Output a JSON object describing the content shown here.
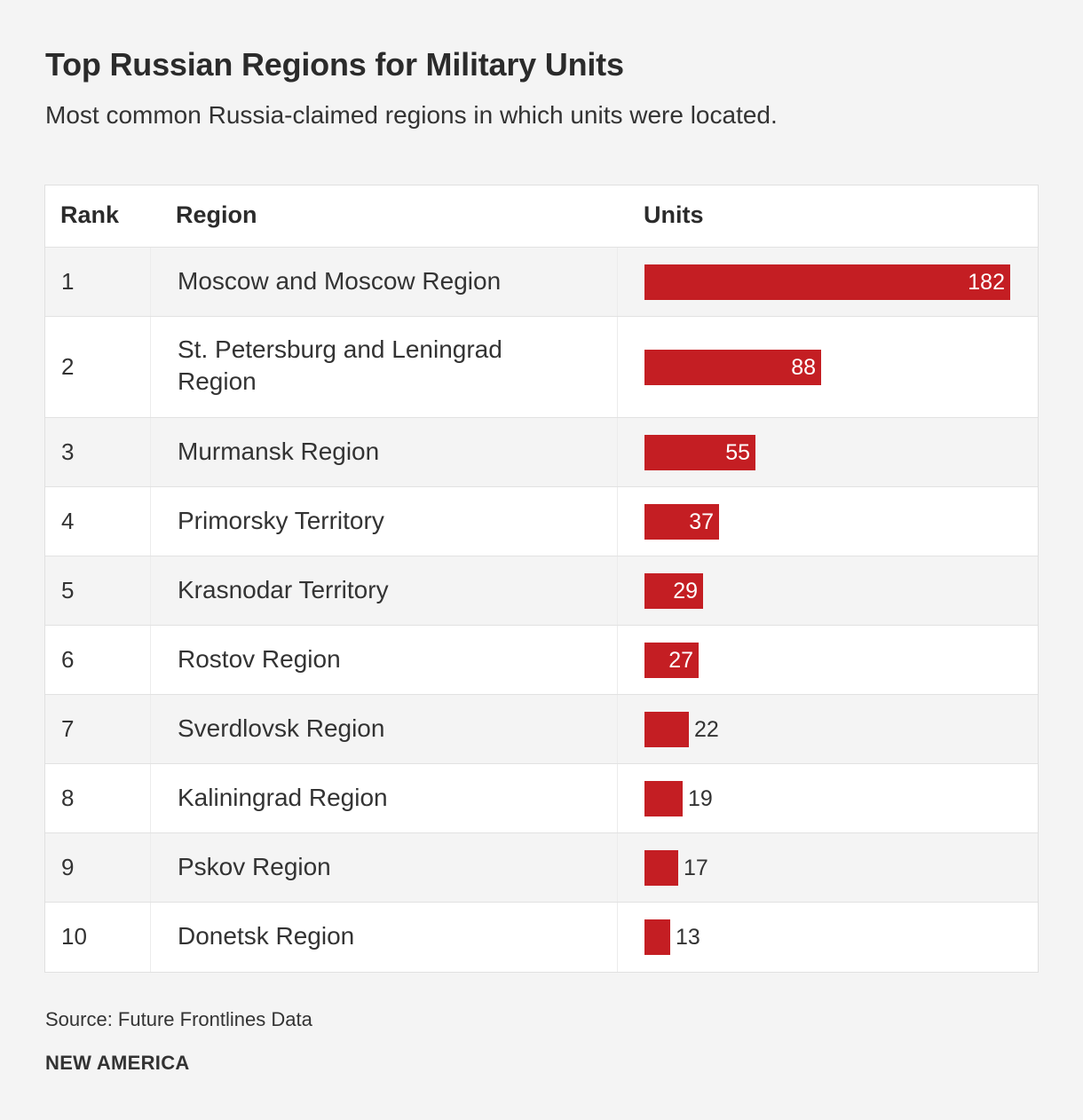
{
  "header": {
    "title": "Top Russian Regions for Military Units",
    "subtitle": "Most common Russia-claimed regions in which units were located."
  },
  "table": {
    "columns": [
      "Rank",
      "Region",
      "Units"
    ]
  },
  "chart_data": {
    "type": "table",
    "bar_color": "#c41e23",
    "columns": [
      "Rank",
      "Region",
      "Units"
    ],
    "rows": [
      {
        "rank": "1",
        "region": "Moscow and Moscow Region",
        "units": 182
      },
      {
        "rank": "2",
        "region": "St. Petersburg and Leningrad Region",
        "units": 88
      },
      {
        "rank": "3",
        "region": "Murmansk Region",
        "units": 55
      },
      {
        "rank": "4",
        "region": "Primorsky Territory",
        "units": 37
      },
      {
        "rank": "5",
        "region": "Krasnodar Territory",
        "units": 29
      },
      {
        "rank": "6",
        "region": "Rostov Region",
        "units": 27
      },
      {
        "rank": "7",
        "region": "Sverdlovsk Region",
        "units": 22
      },
      {
        "rank": "8",
        "region": "Kaliningrad Region",
        "units": 19
      },
      {
        "rank": "9",
        "region": "Pskov Region",
        "units": 17
      },
      {
        "rank": "10",
        "region": "Donetsk Region",
        "units": 13
      }
    ]
  },
  "footer": {
    "source": "Source: Future Frontlines Data",
    "brand": "NEW AMERICA"
  }
}
